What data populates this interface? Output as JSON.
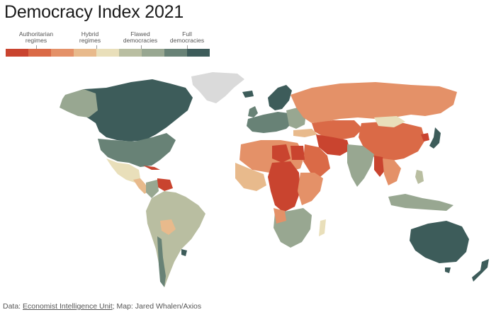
{
  "title": "Democracy Index 2021",
  "legend": {
    "labels": [
      {
        "line1": "Authoritarian",
        "line2": "regimes"
      },
      {
        "line1": "Hybrid",
        "line2": "regimes"
      },
      {
        "line1": "Flawed",
        "line2": "democracies"
      },
      {
        "line1": "Full",
        "line2": "democracies"
      }
    ],
    "colors": [
      "#c9442f",
      "#da6a47",
      "#e49168",
      "#e8ba8c",
      "#e9dfba",
      "#b9bea1",
      "#98a791",
      "#688276",
      "#3d5c5a"
    ]
  },
  "map_colors": {
    "no_data": "#dadada",
    "ocean": "#ffffff"
  },
  "footer": {
    "prefix": "Data: ",
    "source_link": "Economist Intelligence Unit",
    "suffix": "; Map: Jared Whalen/Axios"
  }
}
